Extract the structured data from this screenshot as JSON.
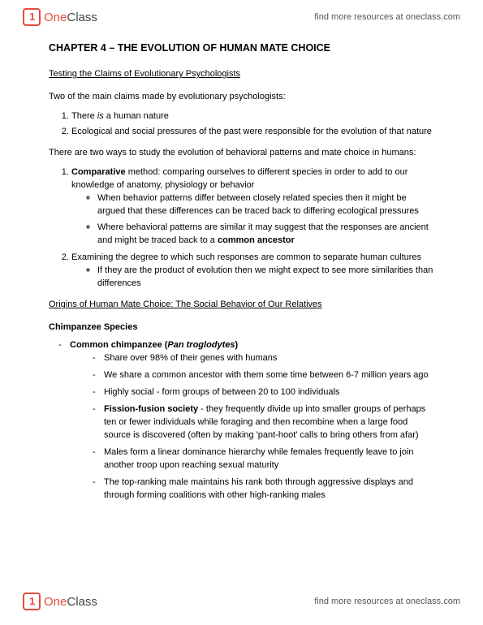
{
  "header": {
    "logo_one": "One",
    "logo_class": "Class",
    "link_text": "find more resources at oneclass.com"
  },
  "doc": {
    "chapter_title": "CHAPTER 4 – THE EVOLUTION OF HUMAN MATE CHOICE",
    "section1": "Testing the Claims of Evolutionary Psychologists",
    "intro1": "Two of the main claims made by evolutionary psychologists:",
    "claim1_pre": "There ",
    "claim1_is": "is",
    "claim1_post": " a human nature",
    "claim2": "Ecological and social pressures of the past were responsible for the evolution of that nature",
    "intro2": "There are two ways to study the evolution of behavioral patterns and mate choice in humans:",
    "m1_bold": "Comparative",
    "m1_rest": " method: comparing ourselves to different species in order to add to our knowledge of anatomy, physiology or behavior",
    "m1_sub1": "When behavior patterns differ between closely related species then it might be argued that these differences can be traced back to differing ecological pressures",
    "m1_sub2_pre": "Where behavioral patterns are similar it may suggest that the responses are ancient and might be traced back to a ",
    "m1_sub2_bold": "common ancestor",
    "m2": "Examining the degree to which such responses are common to separate human cultures",
    "m2_sub1": "If they are the product of evolution then we might expect to see more similarities than differences",
    "section2": "Origins of Human Mate Choice: The Social Behavior of Our Relatives",
    "species_heading": "Chimpanzee Species",
    "chimp_name_pre": "Common chimpanzee (",
    "chimp_sci": "Pan troglodytes",
    "chimp_name_post": ")",
    "chimp_b1": "Share over 98% of their genes with humans",
    "chimp_b2": "We share a common ancestor with them some time between 6-7 million years ago",
    "chimp_b3": "Highly social - form groups of between 20 to 100 individuals",
    "chimp_b4_bold": "Fission-fusion society",
    "chimp_b4_rest": " - they frequently divide up into smaller groups of perhaps ten or fewer individuals while foraging and then recombine when a large food source is discovered (often by making 'pant-hoot' calls to bring others from afar)",
    "chimp_b5": "Males form a linear dominance hierarchy while females frequently leave to join another troop upon reaching sexual maturity",
    "chimp_b6": "The top-ranking male maintains his rank both through aggressive displays and through forming coalitions with other high-ranking males"
  }
}
